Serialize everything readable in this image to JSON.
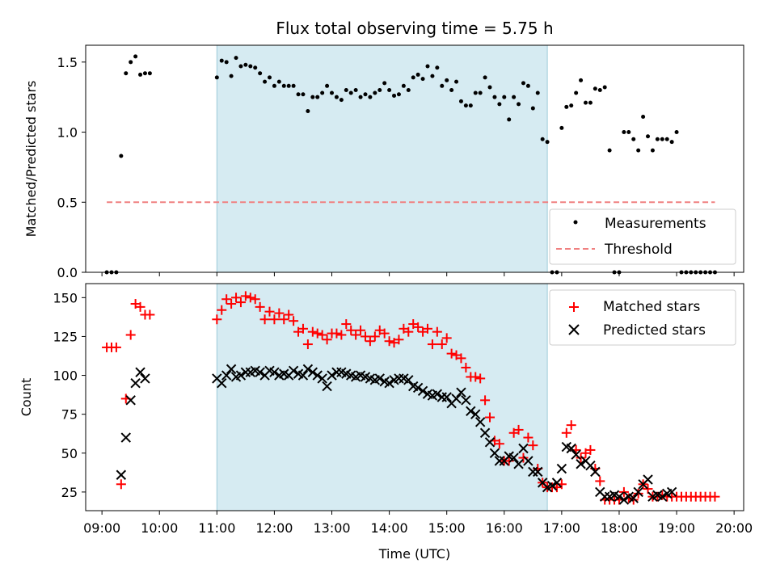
{
  "chart_data": [
    {
      "type": "scatter",
      "title": "Flux total observing time = 5.75 h",
      "xlabel": "",
      "ylabel": "Matched/Predicted stars",
      "xlim": [
        "08:43",
        "20:10"
      ],
      "ylim": [
        0,
        1.62
      ],
      "yticks": [
        0.0,
        0.5,
        1.0,
        1.5
      ],
      "ytick_labels": [
        "0.0",
        "0.5",
        "1.0",
        "1.5"
      ],
      "grid": false,
      "legend_position": "lower-right",
      "shaded_interval": [
        "11:00",
        "16:45"
      ],
      "threshold": {
        "name": "Threshold",
        "value": 0.5,
        "x_range": [
          "09:05",
          "19:40"
        ],
        "color": "#f08080"
      },
      "series": [
        {
          "name": "Measurements",
          "color": "#000000",
          "x": [
            "09:05",
            "09:10",
            "09:15",
            "09:20",
            "09:25",
            "09:30",
            "09:35",
            "09:40",
            "09:45",
            "09:50",
            "11:00",
            "11:05",
            "11:10",
            "11:15",
            "11:20",
            "11:25",
            "11:30",
            "11:35",
            "11:40",
            "11:45",
            "11:50",
            "11:55",
            "12:00",
            "12:05",
            "12:10",
            "12:15",
            "12:20",
            "12:25",
            "12:30",
            "12:35",
            "12:40",
            "12:45",
            "12:50",
            "12:55",
            "13:00",
            "13:05",
            "13:10",
            "13:15",
            "13:20",
            "13:25",
            "13:30",
            "13:35",
            "13:40",
            "13:45",
            "13:50",
            "13:55",
            "14:00",
            "14:05",
            "14:10",
            "14:15",
            "14:20",
            "14:25",
            "14:30",
            "14:35",
            "14:40",
            "14:45",
            "14:50",
            "14:55",
            "15:00",
            "15:05",
            "15:10",
            "15:15",
            "15:20",
            "15:25",
            "15:30",
            "15:35",
            "15:40",
            "15:45",
            "15:50",
            "15:55",
            "16:00",
            "16:05",
            "16:10",
            "16:15",
            "16:20",
            "16:25",
            "16:30",
            "16:35",
            "16:40",
            "16:45",
            "16:50",
            "16:55",
            "17:00",
            "17:05",
            "17:10",
            "17:15",
            "17:20",
            "17:25",
            "17:30",
            "17:35",
            "17:40",
            "17:45",
            "17:50",
            "17:55",
            "18:00",
            "18:05",
            "18:10",
            "18:15",
            "18:20",
            "18:25",
            "18:30",
            "18:35",
            "18:40",
            "18:45",
            "18:50",
            "18:55",
            "19:00",
            "19:05",
            "19:10",
            "19:15",
            "19:20",
            "19:25",
            "19:30",
            "19:35",
            "19:40"
          ],
          "values": [
            0.0,
            0.0,
            0.0,
            0.83,
            1.42,
            1.5,
            1.54,
            1.41,
            1.42,
            1.42,
            1.39,
            1.51,
            1.5,
            1.4,
            1.53,
            1.47,
            1.48,
            1.47,
            1.46,
            1.42,
            1.36,
            1.39,
            1.33,
            1.36,
            1.33,
            1.33,
            1.33,
            1.27,
            1.27,
            1.15,
            1.25,
            1.25,
            1.28,
            1.33,
            1.28,
            1.25,
            1.23,
            1.3,
            1.28,
            1.3,
            1.25,
            1.27,
            1.25,
            1.28,
            1.3,
            1.35,
            1.3,
            1.26,
            1.27,
            1.33,
            1.3,
            1.39,
            1.41,
            1.38,
            1.47,
            1.4,
            1.46,
            1.33,
            1.37,
            1.3,
            1.36,
            1.22,
            1.19,
            1.19,
            1.28,
            1.28,
            1.39,
            1.32,
            1.25,
            1.2,
            1.25,
            1.09,
            1.25,
            1.2,
            1.35,
            1.33,
            1.17,
            1.28,
            0.95,
            0.93,
            0.0,
            0.0,
            1.03,
            1.18,
            1.19,
            1.28,
            1.37,
            1.21,
            1.21,
            1.31,
            1.3,
            1.32,
            0.87,
            0.0,
            0.0,
            1.0,
            1.0,
            0.95,
            0.87,
            1.11,
            0.97,
            0.87,
            0.95,
            0.95,
            0.95,
            0.93,
            1.0,
            0.0,
            0.0,
            0.0,
            0.0,
            0.0,
            0.0,
            0.0,
            0.0
          ]
        }
      ]
    },
    {
      "type": "scatter",
      "title": "",
      "xlabel": "Time (UTC)",
      "ylabel": "Count",
      "xlim": [
        "08:43",
        "20:10"
      ],
      "ylim": [
        13,
        159
      ],
      "yticks": [
        25,
        50,
        75,
        100,
        125,
        150
      ],
      "ytick_labels": [
        "25",
        "50",
        "75",
        "100",
        "125",
        "150"
      ],
      "xticks": [
        "09:00",
        "10:00",
        "11:00",
        "12:00",
        "13:00",
        "14:00",
        "15:00",
        "16:00",
        "17:00",
        "18:00",
        "19:00",
        "20:00"
      ],
      "grid": false,
      "legend_position": "upper-right",
      "shaded_interval": [
        "11:00",
        "16:45"
      ],
      "series": [
        {
          "name": "Matched stars",
          "marker": "plus",
          "color": "#ff0000",
          "x": [
            "09:05",
            "09:10",
            "09:15",
            "09:20",
            "09:25",
            "09:30",
            "09:35",
            "09:40",
            "09:45",
            "09:50",
            "11:00",
            "11:05",
            "11:10",
            "11:15",
            "11:20",
            "11:25",
            "11:30",
            "11:35",
            "11:40",
            "11:45",
            "11:50",
            "11:55",
            "12:00",
            "12:05",
            "12:10",
            "12:15",
            "12:20",
            "12:25",
            "12:30",
            "12:35",
            "12:40",
            "12:45",
            "12:50",
            "12:55",
            "13:00",
            "13:05",
            "13:10",
            "13:15",
            "13:20",
            "13:25",
            "13:30",
            "13:35",
            "13:40",
            "13:45",
            "13:50",
            "13:55",
            "14:00",
            "14:05",
            "14:10",
            "14:15",
            "14:20",
            "14:25",
            "14:30",
            "14:35",
            "14:40",
            "14:45",
            "14:50",
            "14:55",
            "15:00",
            "15:05",
            "15:10",
            "15:15",
            "15:20",
            "15:25",
            "15:30",
            "15:35",
            "15:40",
            "15:45",
            "15:50",
            "15:55",
            "16:00",
            "16:05",
            "16:10",
            "16:15",
            "16:20",
            "16:25",
            "16:30",
            "16:35",
            "16:40",
            "16:45",
            "16:50",
            "16:55",
            "17:00",
            "17:05",
            "17:10",
            "17:15",
            "17:20",
            "17:25",
            "17:30",
            "17:35",
            "17:40",
            "17:45",
            "17:50",
            "17:55",
            "18:00",
            "18:05",
            "18:10",
            "18:15",
            "18:20",
            "18:25",
            "18:30",
            "18:35",
            "18:40",
            "18:45",
            "18:50",
            "18:55",
            "19:00",
            "19:05",
            "19:10",
            "19:15",
            "19:20",
            "19:25",
            "19:30",
            "19:35",
            "19:40"
          ],
          "values": [
            118,
            118,
            118,
            30,
            85,
            126,
            146,
            144,
            139,
            139,
            136,
            142,
            149,
            146,
            150,
            147,
            151,
            150,
            149,
            144,
            136,
            141,
            136,
            140,
            136,
            139,
            135,
            128,
            130,
            120,
            128,
            127,
            126,
            123,
            127,
            127,
            126,
            133,
            129,
            126,
            129,
            125,
            122,
            125,
            129,
            127,
            122,
            121,
            123,
            130,
            128,
            133,
            131,
            128,
            130,
            120,
            128,
            120,
            124,
            114,
            113,
            111,
            105,
            99,
            99,
            98,
            84,
            73,
            58,
            56,
            45,
            45,
            63,
            65,
            47,
            60,
            55,
            40,
            31,
            28,
            28,
            28,
            30,
            63,
            68,
            52,
            47,
            50,
            52,
            40,
            32,
            20,
            20,
            20,
            20,
            25,
            21,
            20,
            24,
            30,
            27,
            22,
            22,
            23,
            22,
            22,
            22,
            22,
            22,
            22,
            22,
            22,
            22,
            22,
            22
          ]
        },
        {
          "name": "Predicted stars",
          "marker": "x",
          "color": "#000000",
          "x": [
            "09:20",
            "09:25",
            "09:30",
            "09:35",
            "09:40",
            "09:45",
            "11:00",
            "11:05",
            "11:10",
            "11:15",
            "11:20",
            "11:25",
            "11:30",
            "11:35",
            "11:40",
            "11:45",
            "11:50",
            "11:55",
            "12:00",
            "12:05",
            "12:10",
            "12:15",
            "12:20",
            "12:25",
            "12:30",
            "12:35",
            "12:40",
            "12:45",
            "12:50",
            "12:55",
            "13:00",
            "13:05",
            "13:10",
            "13:15",
            "13:20",
            "13:25",
            "13:30",
            "13:35",
            "13:40",
            "13:45",
            "13:50",
            "13:55",
            "14:00",
            "14:05",
            "14:10",
            "14:15",
            "14:20",
            "14:25",
            "14:30",
            "14:35",
            "14:40",
            "14:45",
            "14:50",
            "14:55",
            "15:00",
            "15:05",
            "15:10",
            "15:15",
            "15:20",
            "15:25",
            "15:30",
            "15:35",
            "15:40",
            "15:45",
            "15:50",
            "15:55",
            "16:00",
            "16:05",
            "16:10",
            "16:15",
            "16:20",
            "16:25",
            "16:30",
            "16:35",
            "16:40",
            "16:45",
            "16:50",
            "16:55",
            "17:00",
            "17:05",
            "17:10",
            "17:15",
            "17:20",
            "17:25",
            "17:30",
            "17:35",
            "17:40",
            "17:45",
            "17:50",
            "17:55",
            "18:00",
            "18:05",
            "18:10",
            "18:15",
            "18:20",
            "18:25",
            "18:30",
            "18:35",
            "18:40",
            "18:45",
            "18:50",
            "18:55"
          ],
          "values": [
            36,
            60,
            84,
            95,
            102,
            98,
            98,
            95,
            100,
            104,
            99,
            100,
            102,
            102,
            103,
            102,
            100,
            103,
            102,
            100,
            101,
            100,
            103,
            101,
            100,
            104,
            102,
            100,
            98,
            93,
            100,
            102,
            102,
            101,
            100,
            99,
            100,
            99,
            98,
            97,
            98,
            96,
            95,
            97,
            98,
            98,
            97,
            93,
            92,
            90,
            88,
            87,
            88,
            86,
            86,
            82,
            85,
            89,
            84,
            77,
            75,
            70,
            63,
            57,
            50,
            45,
            45,
            48,
            47,
            43,
            53,
            45,
            38,
            38,
            31,
            28,
            29,
            31,
            40,
            54,
            53,
            49,
            43,
            45,
            42,
            38,
            25,
            22,
            22,
            23,
            22,
            20,
            22,
            21,
            25,
            30,
            33,
            22,
            23,
            22,
            24,
            25
          ]
        }
      ]
    }
  ]
}
